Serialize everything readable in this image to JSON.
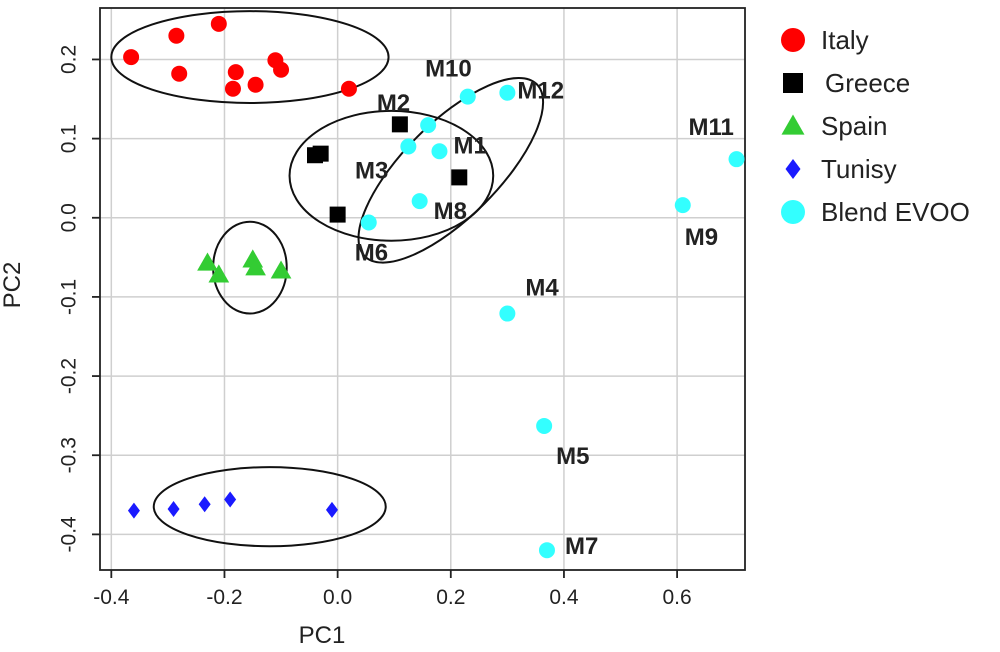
{
  "chart_data": {
    "type": "scatter",
    "xlabel": "PC1",
    "ylabel": "PC2",
    "xlim": [
      -0.42,
      0.72
    ],
    "ylim": [
      -0.445,
      0.265
    ],
    "xticks": [
      -0.4,
      -0.2,
      0.0,
      0.2,
      0.4,
      0.6
    ],
    "xtick_labels": [
      "-0.4",
      "-0.2",
      "0.0",
      "0.2",
      "0.4",
      "0.6"
    ],
    "yticks": [
      -0.4,
      -0.3,
      -0.2,
      -0.1,
      0.0,
      0.1,
      0.2
    ],
    "ytick_labels": [
      "-0.4",
      "-0.3",
      "-0.2",
      "-0.1",
      "0.0",
      "0.1",
      "0.2"
    ],
    "grid": true,
    "legend_position": "outside-right",
    "series": [
      {
        "name": "Italy",
        "marker": "circle",
        "color": "#ff0000",
        "points": [
          {
            "x": -0.365,
            "y": 0.203
          },
          {
            "x": -0.285,
            "y": 0.23
          },
          {
            "x": -0.28,
            "y": 0.182
          },
          {
            "x": -0.21,
            "y": 0.245
          },
          {
            "x": -0.18,
            "y": 0.184
          },
          {
            "x": -0.185,
            "y": 0.163
          },
          {
            "x": -0.145,
            "y": 0.168
          },
          {
            "x": -0.11,
            "y": 0.199
          },
          {
            "x": -0.1,
            "y": 0.187
          },
          {
            "x": 0.02,
            "y": 0.163
          }
        ]
      },
      {
        "name": "Greece",
        "marker": "square",
        "color": "#000000",
        "points": [
          {
            "x": -0.04,
            "y": 0.079
          },
          {
            "x": -0.03,
            "y": 0.081
          },
          {
            "x": 0.0,
            "y": 0.004
          },
          {
            "x": 0.11,
            "y": 0.118
          },
          {
            "x": 0.215,
            "y": 0.051
          }
        ]
      },
      {
        "name": "Spain",
        "marker": "triangle",
        "color": "#33cc33",
        "points": [
          {
            "x": -0.23,
            "y": -0.057
          },
          {
            "x": -0.21,
            "y": -0.072
          },
          {
            "x": -0.15,
            "y": -0.053
          },
          {
            "x": -0.145,
            "y": -0.063
          },
          {
            "x": -0.1,
            "y": -0.067
          }
        ]
      },
      {
        "name": "Tunisy",
        "marker": "diamond",
        "color": "#1a1aff",
        "points": [
          {
            "x": -0.36,
            "y": -0.37
          },
          {
            "x": -0.29,
            "y": -0.368
          },
          {
            "x": -0.235,
            "y": -0.362
          },
          {
            "x": -0.19,
            "y": -0.356
          },
          {
            "x": -0.01,
            "y": -0.369
          }
        ]
      },
      {
        "name": "Blend EVOO",
        "marker": "circle",
        "color": "#33ffff",
        "points": [
          {
            "x": 0.18,
            "y": 0.084,
            "label": "M1"
          },
          {
            "x": 0.16,
            "y": 0.117,
            "label": "M2"
          },
          {
            "x": 0.125,
            "y": 0.09,
            "label": "M3"
          },
          {
            "x": 0.3,
            "y": -0.121,
            "label": "M4"
          },
          {
            "x": 0.365,
            "y": -0.263,
            "label": "M5"
          },
          {
            "x": 0.055,
            "y": -0.006,
            "label": "M6"
          },
          {
            "x": 0.37,
            "y": -0.42,
            "label": "M7"
          },
          {
            "x": 0.145,
            "y": 0.021,
            "label": "M8"
          },
          {
            "x": 0.61,
            "y": 0.016,
            "label": "M9"
          },
          {
            "x": 0.23,
            "y": 0.153,
            "label": "M10"
          },
          {
            "x": 0.705,
            "y": 0.074,
            "label": "M11"
          },
          {
            "x": 0.3,
            "y": 0.158,
            "label": "M12"
          }
        ]
      }
    ],
    "ellipses": [
      {
        "cx": -0.155,
        "cy": 0.203,
        "rx": 0.245,
        "ry": 0.058,
        "angle": 0
      },
      {
        "cx": -0.155,
        "cy": -0.063,
        "rx": 0.065,
        "ry": 0.058,
        "angle": 0
      },
      {
        "cx": -0.12,
        "cy": -0.365,
        "rx": 0.205,
        "ry": 0.05,
        "angle": 0
      },
      {
        "cx": 0.095,
        "cy": 0.053,
        "rx": 0.18,
        "ry": 0.082,
        "angle": 0
      },
      {
        "cx": 0.2,
        "cy": 0.06,
        "rx": 0.25,
        "ry": 0.065,
        "angle": 45
      }
    ]
  }
}
